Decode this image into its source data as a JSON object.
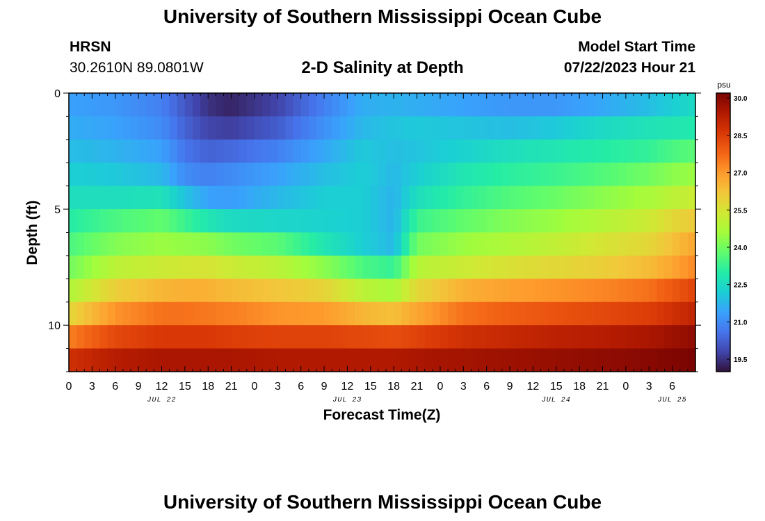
{
  "header": {
    "title": "University of Southern Mississippi Ocean Cube",
    "station": "HRSN",
    "coordinates": "30.2610N  89.0801W",
    "subtitle": "2-D Salinity at Depth",
    "model_start_label": "Model Start Time",
    "model_start_time": "07/22/2023 Hour 21"
  },
  "footer": {
    "title": "University of Southern Mississippi Ocean Cube"
  },
  "chart_data": {
    "type": "heatmap",
    "title": "2-D Salinity at Depth",
    "xlabel": "Forecast Time(Z)",
    "ylabel": "Depth (ft)",
    "x_range_hours": [
      0,
      81
    ],
    "y_range_ft": [
      0,
      12
    ],
    "x_tick_labels": [
      "0",
      "3",
      "6",
      "9",
      "12",
      "15",
      "18",
      "21",
      "0",
      "3",
      "6",
      "9",
      "12",
      "15",
      "18",
      "21",
      "0",
      "3",
      "6",
      "9",
      "12",
      "15",
      "18",
      "21",
      "0",
      "3",
      "6"
    ],
    "day_labels": [
      {
        "label": "JUL 22",
        "hour": 12
      },
      {
        "label": "JUL 23",
        "hour": 36
      },
      {
        "label": "JUL 24",
        "hour": 63
      },
      {
        "label": "JUL 25",
        "hour": 78
      }
    ],
    "y_tick_labels": [
      {
        "label": "0",
        "depth": 0
      },
      {
        "label": "5",
        "depth": 5
      },
      {
        "label": "10",
        "depth": 10
      }
    ],
    "colorbar": {
      "unit": "psu",
      "min": 19.0,
      "max": 30.2,
      "tick_labels": [
        "30.0",
        "28.5",
        "27.0",
        "25.5",
        "24.0",
        "22.5",
        "21.0",
        "19.5"
      ],
      "tick_values": [
        30.0,
        28.5,
        27.0,
        25.5,
        24.0,
        22.5,
        21.0,
        19.5
      ],
      "colors": [
        "#30123b",
        "#4145ab",
        "#4675ed",
        "#39a2fc",
        "#1bcfd4",
        "#24eca6",
        "#61fc6c",
        "#a4fc3b",
        "#d1e834",
        "#f3c63a",
        "#fe9b2d",
        "#f36315",
        "#d93806",
        "#b11901",
        "#7a0402"
      ]
    },
    "depths_ft": [
      0.5,
      1.5,
      2.5,
      3.5,
      4.5,
      5.5,
      6.5,
      7.5,
      8.5,
      9.5,
      10.5,
      11.5
    ],
    "hours": [
      0,
      6,
      12,
      15,
      18,
      21,
      27,
      33,
      38,
      42,
      45,
      51,
      57,
      63,
      69,
      75,
      78,
      81
    ],
    "salinity_psu": [
      [
        21.4,
        21.2,
        20.8,
        20.1,
        19.5,
        19.3,
        19.8,
        20.8,
        21.6,
        21.7,
        21.6,
        21.4,
        21.2,
        21.2,
        21.5,
        21.9,
        22.2,
        22.5
      ],
      [
        21.6,
        21.4,
        21.0,
        20.3,
        19.8,
        19.7,
        20.2,
        21.1,
        21.8,
        22.0,
        22.1,
        22.0,
        21.9,
        22.1,
        22.5,
        22.7,
        22.8,
        22.9
      ],
      [
        21.9,
        21.7,
        21.4,
        20.6,
        20.3,
        20.4,
        20.8,
        21.5,
        22.1,
        21.9,
        22.0,
        22.3,
        22.6,
        22.8,
        23.0,
        23.2,
        23.5,
        23.7
      ],
      [
        22.2,
        22.1,
        21.8,
        21.0,
        20.8,
        21.0,
        21.4,
        21.9,
        22.2,
        21.8,
        22.2,
        22.8,
        23.1,
        23.3,
        23.6,
        24.0,
        24.3,
        24.5
      ],
      [
        22.6,
        22.6,
        22.7,
        22.0,
        21.4,
        21.3,
        21.8,
        22.2,
        22.2,
        21.7,
        22.6,
        23.2,
        23.6,
        23.9,
        24.3,
        24.7,
        25.0,
        25.3
      ],
      [
        23.0,
        23.5,
        23.8,
        23.3,
        22.8,
        22.5,
        22.4,
        22.3,
        22.2,
        21.7,
        23.3,
        23.8,
        24.2,
        24.5,
        24.9,
        25.3,
        25.8,
        26.1
      ],
      [
        23.5,
        24.2,
        24.5,
        24.4,
        24.3,
        24.0,
        23.7,
        22.8,
        22.2,
        21.8,
        24.0,
        24.5,
        24.8,
        25.1,
        25.5,
        25.8,
        26.3,
        26.8
      ],
      [
        24.0,
        25.0,
        25.3,
        25.4,
        25.5,
        25.3,
        25.0,
        24.3,
        23.5,
        23.2,
        24.9,
        25.3,
        25.6,
        25.8,
        26.0,
        26.4,
        26.8,
        27.3
      ],
      [
        24.8,
        26.0,
        26.5,
        26.6,
        26.6,
        26.4,
        26.2,
        25.9,
        25.0,
        24.7,
        25.8,
        26.6,
        26.9,
        27.1,
        27.3,
        27.6,
        28.0,
        28.4
      ],
      [
        25.8,
        27.1,
        27.6,
        27.6,
        27.5,
        27.4,
        27.1,
        27.0,
        26.5,
        26.3,
        26.8,
        27.6,
        27.9,
        28.1,
        28.3,
        28.5,
        28.8,
        29.1
      ],
      [
        27.4,
        28.3,
        28.6,
        28.6,
        28.6,
        28.5,
        28.4,
        28.4,
        28.3,
        28.2,
        28.4,
        28.8,
        29.0,
        29.2,
        29.3,
        29.5,
        29.7,
        29.9
      ],
      [
        28.8,
        29.3,
        29.5,
        29.5,
        29.5,
        29.5,
        29.4,
        29.4,
        29.4,
        29.4,
        29.5,
        29.6,
        29.7,
        29.8,
        29.9,
        30.0,
        30.1,
        30.2
      ]
    ]
  }
}
